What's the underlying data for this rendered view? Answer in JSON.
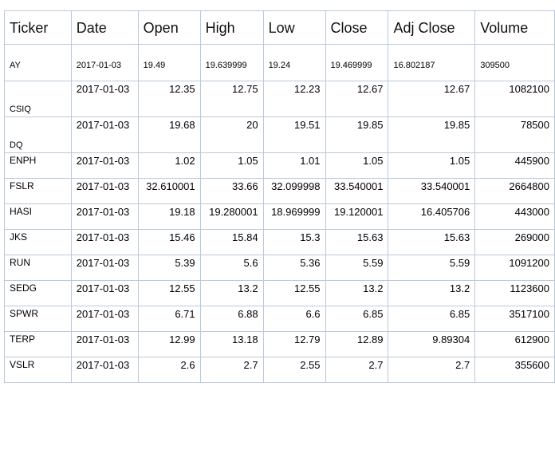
{
  "table": {
    "headers": [
      "Ticker",
      "Date",
      "Open",
      "High",
      "Low",
      "Close",
      "Adj Close",
      "Volume"
    ],
    "rows": [
      [
        "AY",
        "2017-01-03",
        "19.49",
        "19.639999",
        "19.24",
        "19.469999",
        "16.802187",
        "309500"
      ],
      [
        "CSIQ",
        "2017-01-03",
        "12.35",
        "12.75",
        "12.23",
        "12.67",
        "12.67",
        "1082100"
      ],
      [
        "DQ",
        "2017-01-03",
        "19.68",
        "20",
        "19.51",
        "19.85",
        "19.85",
        "78500"
      ],
      [
        "ENPH",
        "2017-01-03",
        "1.02",
        "1.05",
        "1.01",
        "1.05",
        "1.05",
        "445900"
      ],
      [
        "FSLR",
        "2017-01-03",
        "32.610001",
        "33.66",
        "32.099998",
        "33.540001",
        "33.540001",
        "2664800"
      ],
      [
        "HASI",
        "2017-01-03",
        "19.18",
        "19.280001",
        "18.969999",
        "19.120001",
        "16.405706",
        "443000"
      ],
      [
        "JKS",
        "2017-01-03",
        "15.46",
        "15.84",
        "15.3",
        "15.63",
        "15.63",
        "269000"
      ],
      [
        "RUN",
        "2017-01-03",
        "5.39",
        "5.6",
        "5.36",
        "5.59",
        "5.59",
        "1091200"
      ],
      [
        "SEDG",
        "2017-01-03",
        "12.55",
        "13.2",
        "12.55",
        "13.2",
        "13.2",
        "1123600"
      ],
      [
        "SPWR",
        "2017-01-03",
        "6.71",
        "6.88",
        "6.6",
        "6.85",
        "6.85",
        "3517100"
      ],
      [
        "TERP",
        "2017-01-03",
        "12.99",
        "13.18",
        "12.79",
        "12.89",
        "9.89304",
        "612900"
      ],
      [
        "VSLR",
        "2017-01-03",
        "2.6",
        "2.7",
        "2.55",
        "2.7",
        "2.7",
        "355600"
      ]
    ]
  }
}
